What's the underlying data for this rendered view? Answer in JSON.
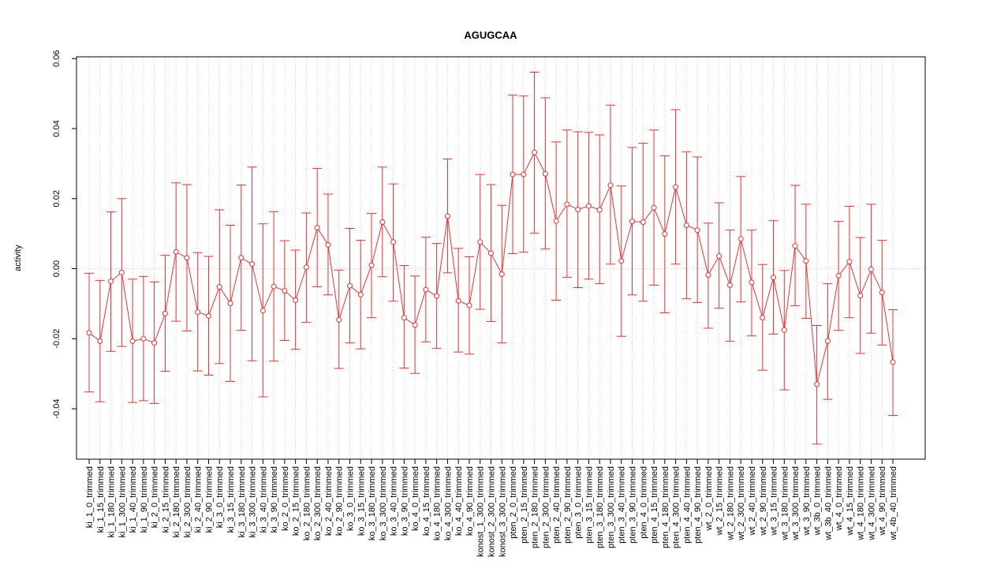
{
  "chart_data": {
    "type": "errorbar-line",
    "title": "AGUGCAA",
    "y_label": "activity",
    "categories": [
      "ki_1_0_trimmed",
      "ki_1_15_trimmed",
      "ki_1_180_trimmed",
      "ki_1_300_trimmed",
      "ki_1_40_trimmed",
      "ki_1_90_trimmed",
      "ki_2_0_trimmed",
      "ki_2_15_trimmed",
      "ki_2_180_trimmed",
      "ki_2_300_trimmed",
      "ki_2_40_trimmed",
      "ki_2_90_trimmed",
      "ki_3_0_trimmed",
      "ki_3_15_trimmed",
      "ki_3_180_trimmed",
      "ki_3_300_trimmed",
      "ki_3_40_trimmed",
      "ki_3_90_trimmed",
      "ko_2_0_trimmed",
      "ko_2_15_trimmed",
      "ko_2_180_trimmed",
      "ko_2_300_trimmed",
      "ko_2_40_trimmed",
      "ko_2_90_trimmed",
      "ko_3_0_trimmed",
      "ko_3_15_trimmed",
      "ko_3_180_trimmed",
      "ko_3_300_trimmed",
      "ko_3_40_trimmed",
      "ko_3_90_trimmed",
      "ko_4_0_trimmed",
      "ko_4_15_trimmed",
      "ko_4_180_trimmed",
      "ko_4_300_trimmed",
      "ko_4_40_trimmed",
      "ko_4_90_trimmed",
      "konost_1_300_trimmed",
      "konost_2_300_trimmed",
      "konost_3_300_trimmed",
      "pten_2_0_trimmed",
      "pten_2_15_trimmed",
      "pten_2_180_trimmed",
      "pten_2_300_trimmed",
      "pten_2_40_trimmed",
      "pten_2_90_trimmed",
      "pten_3_0_trimmed",
      "pten_3_15_trimmed",
      "pten_3_180_trimmed",
      "pten_3_300_trimmed",
      "pten_3_40_trimmed",
      "pten_3_90_trimmed",
      "pten_4_0_trimmed",
      "pten_4_15_trimmed",
      "pten_4_180_trimmed",
      "pten_4_300_trimmed",
      "pten_4_40_trimmed",
      "pten_4_90_trimmed",
      "wt_2_0_trimmed",
      "wt_2_15_trimmed",
      "wt_2_180_trimmed",
      "wt_2_300_trimmed",
      "wt_2_40_trimmed",
      "wt_2_90_trimmed",
      "wt_3_15_trimmed",
      "wt_3_180_trimmed",
      "wt_3_300_trimmed",
      "wt_3_90_trimmed",
      "wt_3b_0_trimmed",
      "wt_3b_40_trimmed",
      "wt_4_0_trimmed",
      "wt_4_15_trimmed",
      "wt_4_180_trimmed",
      "wt_4_300_trimmed",
      "wt_4_90_trimmed",
      "wt_4b_40_trimmed"
    ],
    "series": [
      {
        "color": "#f03030",
        "values": [
          -0.0183,
          -0.0207,
          -0.0036,
          -0.0011,
          -0.0207,
          -0.02,
          -0.0212,
          -0.0128,
          0.0048,
          0.0031,
          -0.0124,
          -0.0135,
          -0.0052,
          -0.0099,
          0.0031,
          0.0013,
          -0.012,
          -0.0051,
          -0.0063,
          -0.009,
          0.0004,
          0.0117,
          0.0068,
          -0.0146,
          -0.0049,
          -0.0074,
          0.001,
          0.0133,
          0.0076,
          -0.014,
          -0.0161,
          -0.006,
          -0.0078,
          0.015,
          -0.0092,
          -0.0105,
          0.0076,
          0.0044,
          -0.0016,
          0.0269,
          0.0269,
          0.0332,
          0.0271,
          0.0136,
          0.0184,
          0.0169,
          0.0179,
          0.0168,
          0.0238,
          0.0022,
          0.0135,
          0.0133,
          0.0174,
          0.0099,
          0.0233,
          0.0124,
          0.011,
          -0.0018,
          0.0036,
          -0.0047,
          0.0085,
          -0.0039,
          -0.014,
          -0.0025,
          -0.0175,
          0.0065,
          0.0022,
          -0.033,
          -0.0207,
          -0.002,
          0.002,
          -0.0077,
          -0.0002,
          -0.0068,
          -0.0267
        ],
        "upper": [
          -0.0013,
          -0.0034,
          0.0162,
          0.02,
          -0.003,
          -0.0022,
          -0.0038,
          0.0038,
          0.0245,
          0.024,
          0.0046,
          0.0035,
          0.0168,
          0.0124,
          0.0239,
          0.029,
          0.0128,
          0.0163,
          0.008,
          0.0053,
          0.0159,
          0.0286,
          0.0213,
          -0.0004,
          0.0115,
          0.0081,
          0.0158,
          0.029,
          0.0242,
          0.0009,
          -0.0021,
          0.009,
          0.0072,
          0.0313,
          0.0058,
          0.0034,
          0.0269,
          0.024,
          0.0181,
          0.0496,
          0.0493,
          0.0561,
          0.0488,
          0.0362,
          0.0396,
          0.0391,
          0.0389,
          0.0382,
          0.0467,
          0.0236,
          0.0346,
          0.0358,
          0.0396,
          0.0322,
          0.0454,
          0.0334,
          0.0319,
          0.013,
          0.0188,
          0.011,
          0.0263,
          0.011,
          0.0012,
          0.0137,
          -0.0005,
          0.0238,
          0.0184,
          -0.0162,
          -0.0043,
          0.0135,
          0.0178,
          0.0089,
          0.0184,
          0.0081,
          -0.0117
        ],
        "lower": [
          -0.0352,
          -0.038,
          -0.0236,
          -0.0222,
          -0.0382,
          -0.0377,
          -0.0385,
          -0.0293,
          -0.015,
          -0.0178,
          -0.0292,
          -0.0304,
          -0.0271,
          -0.0322,
          -0.0176,
          -0.0263,
          -0.0366,
          -0.0264,
          -0.0205,
          -0.023,
          -0.0153,
          -0.0052,
          -0.0075,
          -0.0285,
          -0.0212,
          -0.0229,
          -0.014,
          -0.0023,
          -0.0093,
          -0.0284,
          -0.0299,
          -0.0209,
          -0.0228,
          -0.0012,
          -0.0238,
          -0.0244,
          -0.0116,
          -0.0151,
          -0.0212,
          0.0043,
          0.0047,
          0.0101,
          0.0056,
          -0.009,
          -0.0025,
          -0.0054,
          -0.003,
          -0.0043,
          0.0013,
          -0.0193,
          -0.0075,
          -0.0093,
          -0.0047,
          -0.0126,
          0.0013,
          -0.0086,
          -0.0097,
          -0.017,
          -0.0113,
          -0.0207,
          -0.0095,
          -0.0192,
          -0.029,
          -0.0187,
          -0.0346,
          -0.0106,
          -0.0142,
          -0.0501,
          -0.0373,
          -0.0176,
          -0.014,
          -0.0242,
          -0.0184,
          -0.0218,
          -0.0419
        ]
      }
    ],
    "ylim": [
      -0.0544,
      0.0605
    ],
    "yticks": [
      -0.04,
      -0.02,
      {
        "value": 0,
        "label": "0.00"
      },
      0.02,
      0.04,
      0.06
    ],
    "hline": 0,
    "grid": true
  }
}
